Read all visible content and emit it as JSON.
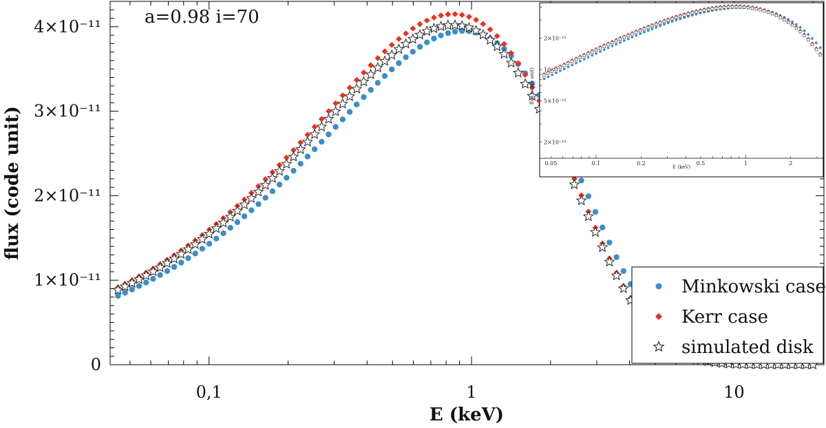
{
  "chart_data": {
    "type": "scatter",
    "title": "",
    "annotation": "a=0.98 i=70",
    "xlabel": "E (keV)",
    "ylabel": "flux (code unit)",
    "xscale": "log",
    "xlim": [
      0.042,
      22
    ],
    "ylim": [
      0,
      4.3e-11
    ],
    "x_tick_labels": [
      {
        "value": 0.1,
        "label": "0,1"
      },
      {
        "value": 1,
        "label": "1"
      },
      {
        "value": 10,
        "label": "10"
      }
    ],
    "y_tick_labels": [
      {
        "value": 0,
        "label": "0"
      },
      {
        "value": 1e-11,
        "label": "1×10⁻¹¹"
      },
      {
        "value": 2e-11,
        "label": "2×10⁻¹¹"
      },
      {
        "value": 3e-11,
        "label": "3×10⁻¹¹"
      },
      {
        "value": 4e-11,
        "label": "4×10⁻¹¹"
      }
    ],
    "legend": {
      "position": "lower-right",
      "entries": [
        "Minkowski case",
        "Kerr case",
        "simulated disk"
      ]
    },
    "model": {
      "energy_range_keV": [
        0.045,
        20
      ],
      "points": 100,
      "spectral_index": 0.76,
      "series": [
        {
          "name": "Minkowski case",
          "peak_energy_keV": 0.93,
          "peak_flux": 3.95e-11,
          "color": "#3b8ec9",
          "marker": "circle"
        },
        {
          "name": "Kerr case",
          "peak_energy_keV": 0.85,
          "peak_flux": 4.15e-11,
          "color": "#e8321f",
          "marker": "diamond"
        },
        {
          "name": "simulated disk",
          "peak_energy_keV": 0.85,
          "peak_flux": 4.02e-11,
          "color": "#222222",
          "marker": "star"
        }
      ]
    },
    "inset": {
      "xscale": "log",
      "yscale": "log",
      "xlabel": "E (keV)",
      "ylabel": "flux (code unit)",
      "xlim": [
        0.042,
        3.3
      ],
      "ylim": [
        1.4e-12,
        4.4e-11
      ],
      "x_tick_labels": [
        {
          "value": 0.05,
          "label": "0.05"
        },
        {
          "value": 0.1,
          "label": "0.1"
        },
        {
          "value": 0.2,
          "label": "0.2"
        },
        {
          "value": 0.5,
          "label": "0.5"
        },
        {
          "value": 1,
          "label": "1"
        },
        {
          "value": 2,
          "label": "2"
        }
      ],
      "y_tick_labels": [
        {
          "value": 2e-12,
          "label": "2×10⁻¹²"
        },
        {
          "value": 5e-12,
          "label": "5×10⁻¹²"
        },
        {
          "value": 1e-11,
          "label": "10⁻¹¹"
        },
        {
          "value": 2e-11,
          "label": "2×10⁻¹¹"
        }
      ]
    }
  }
}
